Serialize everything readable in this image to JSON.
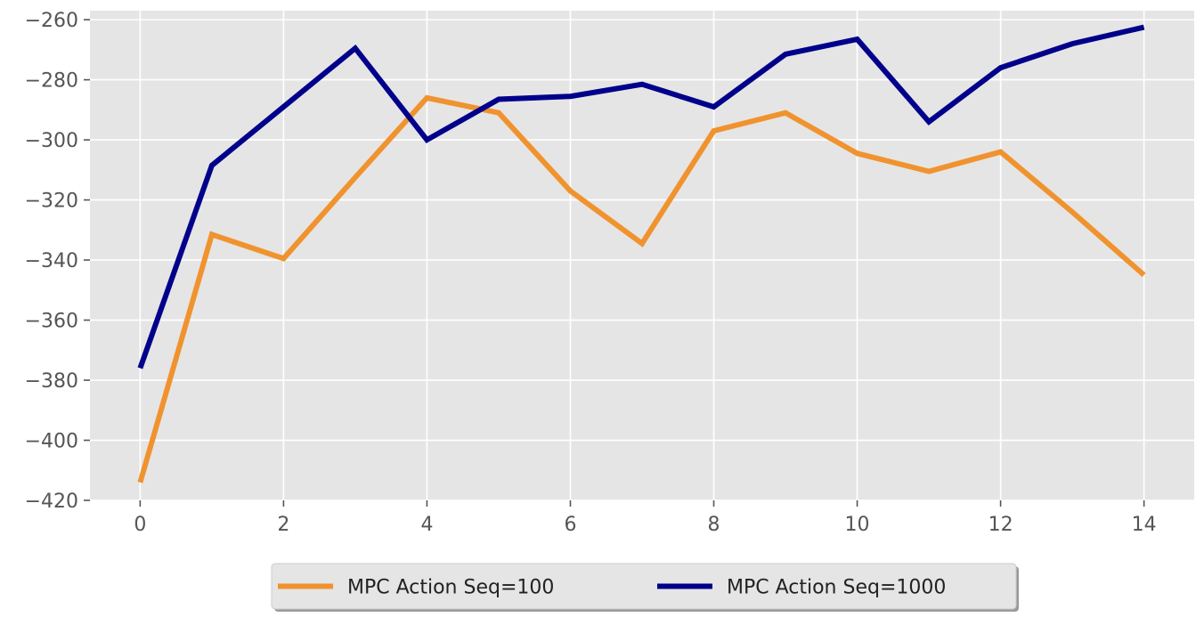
{
  "chart_data": {
    "type": "line",
    "title": "",
    "xlabel": "",
    "ylabel": "",
    "x": [
      0,
      1,
      2,
      3,
      4,
      5,
      6,
      7,
      8,
      9,
      10,
      11,
      12,
      13,
      14
    ],
    "xlim": [
      -0.7,
      14.7
    ],
    "ylim": [
      -420,
      -257
    ],
    "xticks": [
      0,
      2,
      4,
      6,
      8,
      10,
      12,
      14
    ],
    "yticks": [
      -420,
      -400,
      -380,
      -360,
      -340,
      -320,
      -300,
      -280,
      -260
    ],
    "xtick_labels": [
      "0",
      "2",
      "4",
      "6",
      "8",
      "10",
      "12",
      "14"
    ],
    "ytick_labels": [
      "−420",
      "−400",
      "−380",
      "−360",
      "−340",
      "−320",
      "−300",
      "−280",
      "−260"
    ],
    "grid": true,
    "style": "ggplot",
    "legend_position": "below-center",
    "series": [
      {
        "name": "MPC Action Seq=100",
        "color": "#f0932f",
        "values": [
          -414,
          -331.5,
          -339.5,
          -312.5,
          -286,
          -291,
          -317,
          -334.5,
          -297,
          -291,
          -304.5,
          -310.5,
          -304,
          -324,
          -345
        ]
      },
      {
        "name": "MPC Action Seq=1000",
        "color": "#00008b",
        "values": [
          -376,
          -308.5,
          -289,
          -269.5,
          -300,
          -286.5,
          -285.5,
          -281.5,
          -289,
          -271.5,
          -266.5,
          -294,
          -276,
          -268,
          -262.5
        ]
      }
    ]
  }
}
